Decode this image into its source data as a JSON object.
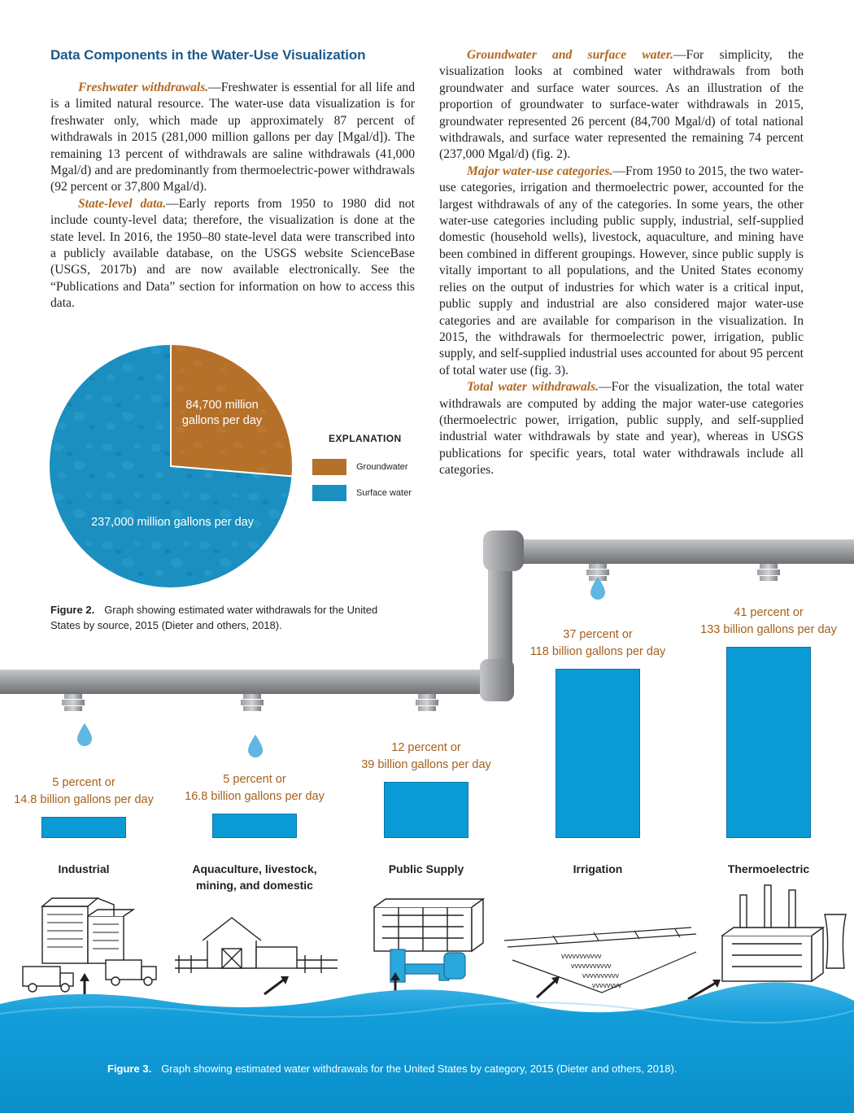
{
  "heading": "Data Components in the Water-Use Visualization",
  "left_column": [
    {
      "run_in": "Freshwater withdrawals.",
      "text": "—Freshwater is essential for all life and is a limited natural resource. The water-use data visualization is for freshwater only, which made up approximately 87 percent of withdrawals in 2015 (281,000 million gallons per day [Mgal/d]). The remaining 13 percent of withdrawals are saline withdrawals (41,000 Mgal/d) and are predominantly from thermoelectric-power withdrawals (92 percent or 37,800 Mgal/d)."
    },
    {
      "run_in": "State-level data.",
      "text": "—Early reports from 1950 to 1980 did not include county-level data; therefore, the visualization is done at the state level. In 2016, the 1950–80 state-level data were transcribed into a publicly available database, on the USGS website ScienceBase (USGS, 2017b) and are now available electronically. See the “Publications and Data” section for information on how to access this data."
    }
  ],
  "right_column": [
    {
      "run_in": "Groundwater and surface water.",
      "text": "—For simplicity, the visualization looks at combined water withdrawals from both groundwater and surface water sources. As an illustration of the proportion of groundwater to surface-water withdrawals in 2015, groundwater represented 26 percent (84,700 Mgal/d) of total national withdrawals, and surface water represented the remaining 74 percent (237,000 Mgal/d) (fig. 2)."
    },
    {
      "run_in": "Major water-use categories.",
      "text": "—From 1950 to 2015, the two water-use categories, irrigation and thermoelectric power, accounted for the largest withdrawals of any of the categories. In some years, the other water-use categories including public supply, industrial, self-supplied domestic (household wells), livestock, aquaculture, and mining have been combined in different groupings. However, since public supply is vitally important to all populations, and the United States economy relies on the output of industries for which water is a critical input, public supply and industrial are also considered major water-use categories and are available for comparison in the visualization. In 2015, the withdrawals for thermoelectric power, irrigation, public supply, and self-supplied industrial uses accounted for about 95 percent of total water use (fig. 3)."
    },
    {
      "run_in": "Total water withdrawals.",
      "text": "—For the visualization, the total water withdrawals are computed by adding the major water-use categories (thermoelectric power, irrigation, public supply, and self-supplied industrial water withdrawals by state and year), whereas in USGS publications for specific years, total water withdrawals include all categories."
    }
  ],
  "figure2": {
    "caption_label": "Figure 2.",
    "caption_text": "Graph showing estimated water withdrawals for the United States by source, 2015 (Dieter and others, 2018).",
    "legend_title": "EXPLANATION",
    "chart_data": {
      "type": "pie",
      "slices": [
        {
          "name": "Groundwater",
          "value": 84700,
          "label_line1": "84,700 million",
          "label_line2": "gallons per day",
          "color": "#b5702a"
        },
        {
          "name": "Surface water",
          "value": 237000,
          "label": "237,000 million gallons per day",
          "color": "#1a8fc0"
        }
      ],
      "unit": "million gallons per day"
    }
  },
  "figure3": {
    "caption_label": "Figure 3.",
    "caption_text": "Graph showing estimated water withdrawals for the United States by category, 2015 (Dieter and others, 2018).",
    "chart_data": {
      "type": "bar",
      "categories": [
        "Industrial",
        "Aquaculture, livestock, mining, and domestic",
        "Public Supply",
        "Irrigation",
        "Thermoelectric"
      ],
      "category_lines": [
        [
          "Industrial"
        ],
        [
          "Aquaculture, livestock,",
          "mining, and domestic"
        ],
        [
          "Public Supply"
        ],
        [
          "Irrigation"
        ],
        [
          "Thermoelectric"
        ]
      ],
      "values_billion_gal_per_day": [
        14.8,
        16.8,
        39,
        118,
        133
      ],
      "percent": [
        5,
        5,
        12,
        37,
        41
      ],
      "label_line1": [
        "5 percent or",
        "5 percent or",
        "12 percent or",
        "37 percent or",
        "41 percent or"
      ],
      "label_line2": [
        "14.8 billion gallons per day",
        "16.8 billion gallons per day",
        "39 billion gallons per day",
        "118 billion gallons per day",
        "133 billion gallons per day"
      ],
      "bar_color": "#0a9bd6",
      "label_color": "#a4611d"
    }
  },
  "colors": {
    "heading": "#1c5a8c",
    "run_in": "#b06a23",
    "water": "#0a9bd6",
    "pipe": "#8a8c8f"
  }
}
